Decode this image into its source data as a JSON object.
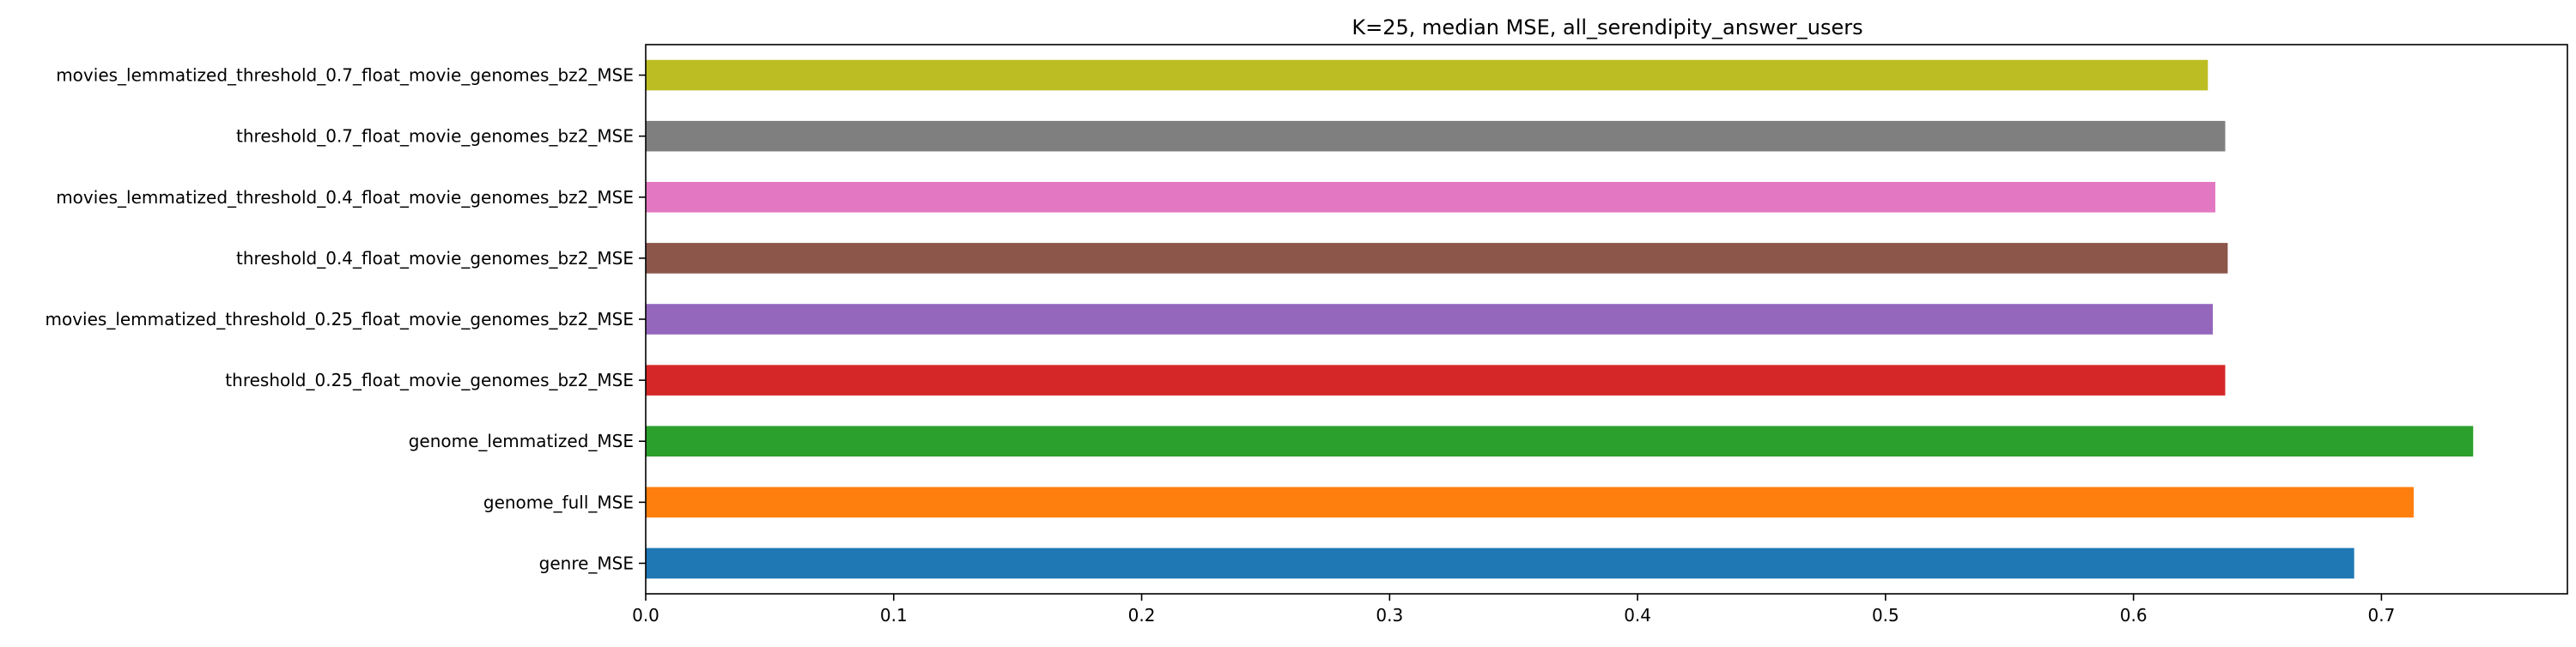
{
  "chart_data": {
    "type": "bar",
    "orientation": "horizontal",
    "title": "K=25, median MSE, all_serendipity_answer_users",
    "xlabel": "",
    "ylabel": "",
    "xlim": [
      0.0,
      0.775
    ],
    "xticks": [
      0.0,
      0.1,
      0.2,
      0.3,
      0.4,
      0.5,
      0.6,
      0.7
    ],
    "xtick_labels": [
      "0.0",
      "0.1",
      "0.2",
      "0.3",
      "0.4",
      "0.5",
      "0.6",
      "0.7"
    ],
    "grid": false,
    "legend": "none",
    "categories": [
      "genre_MSE",
      "genome_full_MSE",
      "genome_lemmatized_MSE",
      "threshold_0.25_float_movie_genomes_bz2_MSE",
      "movies_lemmatized_threshold_0.25_float_movie_genomes_bz2_MSE",
      "threshold_0.4_float_movie_genomes_bz2_MSE",
      "movies_lemmatized_threshold_0.4_float_movie_genomes_bz2_MSE",
      "threshold_0.7_float_movie_genomes_bz2_MSE",
      "movies_lemmatized_threshold_0.7_float_movie_genomes_bz2_MSE"
    ],
    "values": [
      0.689,
      0.713,
      0.737,
      0.637,
      0.632,
      0.638,
      0.633,
      0.637,
      0.63
    ],
    "colors": [
      "#1f77b4",
      "#ff7f0e",
      "#2ca02c",
      "#d62728",
      "#9467bd",
      "#8c564b",
      "#e377c2",
      "#7f7f7f",
      "#bcbd22"
    ]
  }
}
